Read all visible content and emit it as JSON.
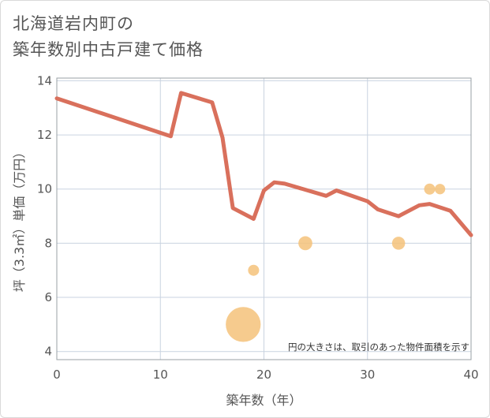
{
  "chart_data": {
    "type": "line",
    "title_lines": [
      "北海道岩内町の",
      "築年数別中古戸建て価格"
    ],
    "xlabel": "築年数（年）",
    "ylabel": "坪（3.3㎡）単価（万円）",
    "xlim": [
      0,
      40
    ],
    "ylim": [
      3.7,
      14.1
    ],
    "x_ticks": [
      0,
      10,
      20,
      30,
      40
    ],
    "y_ticks": [
      4,
      6,
      8,
      10,
      12,
      14
    ],
    "grid": true,
    "note": "円の大きさは、取引のあった物件面積を示す",
    "line_color": "#d9705c",
    "bubble_color": "#f4c27a",
    "series": [
      {
        "type": "line",
        "x": [
          0,
          11,
          12,
          15,
          16,
          17,
          19,
          20,
          21,
          22,
          26,
          27,
          30,
          31,
          33,
          35,
          36,
          38,
          40
        ],
        "y": [
          13.35,
          11.95,
          13.55,
          13.2,
          11.9,
          9.3,
          8.9,
          9.95,
          10.25,
          10.2,
          9.75,
          9.95,
          9.55,
          9.25,
          9.0,
          9.4,
          9.45,
          9.2,
          8.3
        ]
      },
      {
        "type": "bubble",
        "points": [
          {
            "x": 18,
            "y": 5.0,
            "size": 10
          },
          {
            "x": 19,
            "y": 7.0,
            "size": 1
          },
          {
            "x": 24,
            "y": 8.0,
            "size": 1.6
          },
          {
            "x": 33,
            "y": 8.0,
            "size": 1.4
          },
          {
            "x": 36,
            "y": 10.0,
            "size": 1
          },
          {
            "x": 37,
            "y": 10.0,
            "size": 0.9
          }
        ]
      }
    ]
  }
}
